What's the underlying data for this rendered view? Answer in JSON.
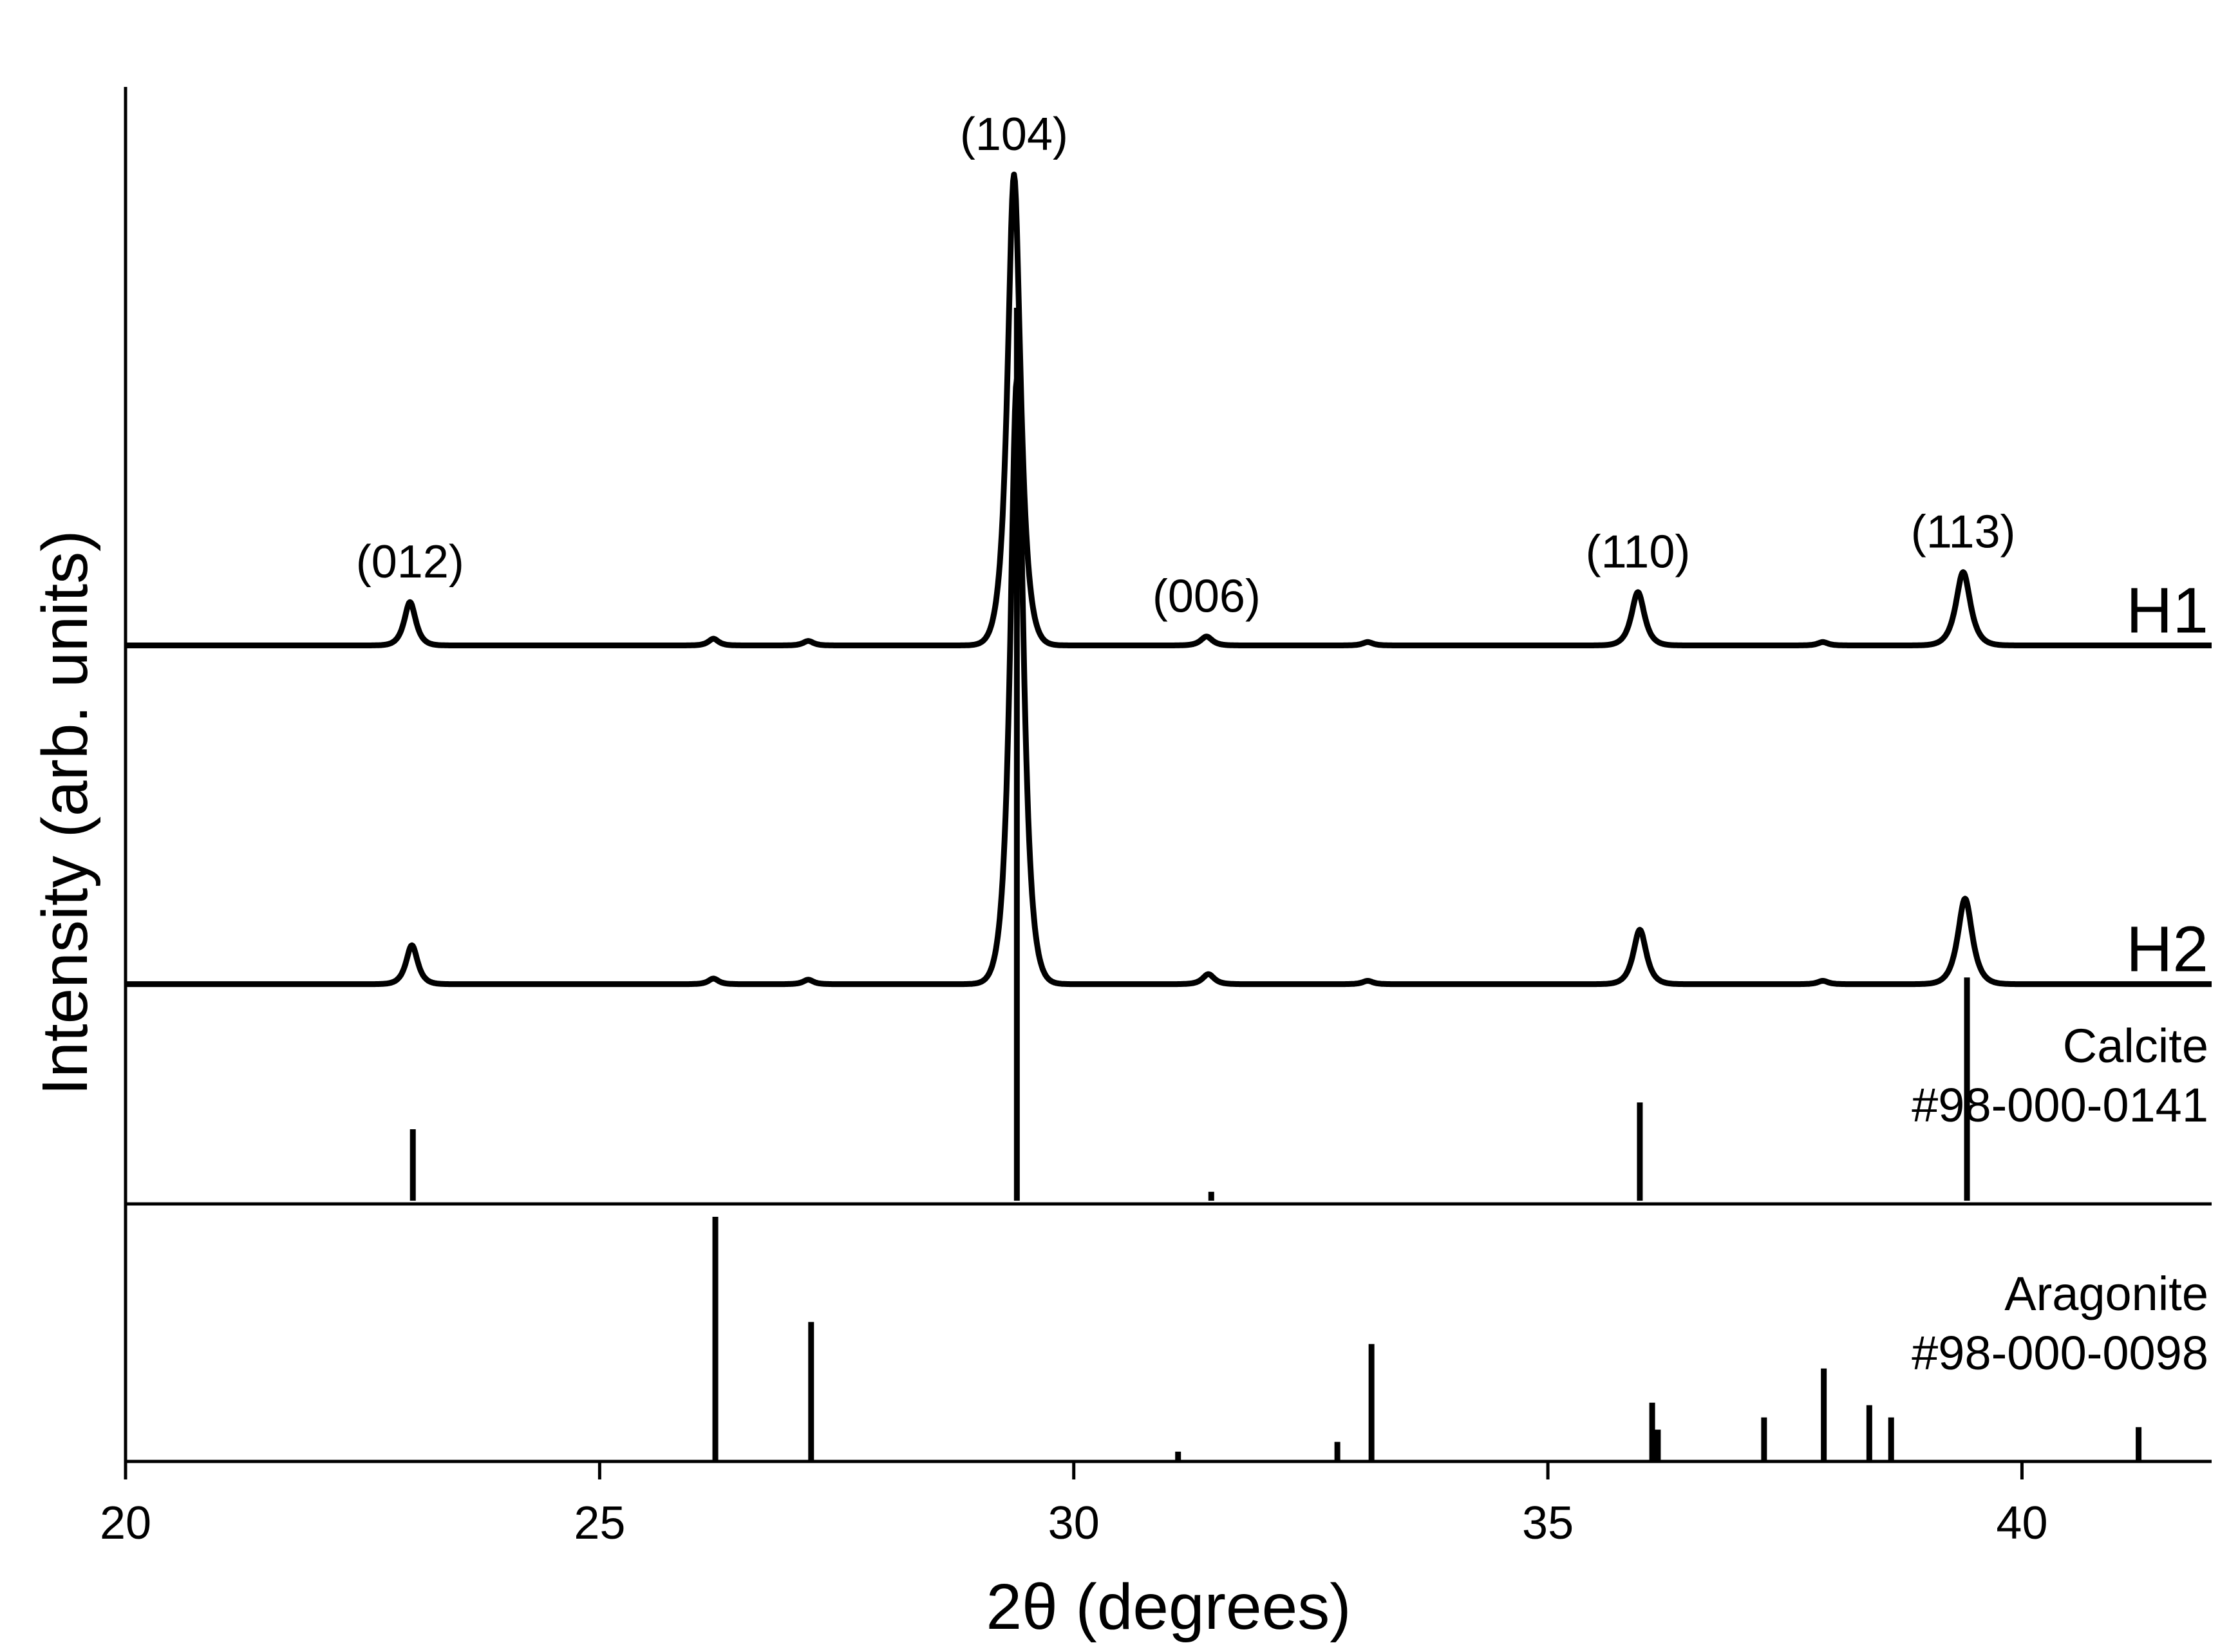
{
  "chart_data": {
    "type": "line",
    "xlabel": "2θ (degrees)",
    "ylabel": "Intensity (arb. units)",
    "xlim": [
      20,
      42
    ],
    "x_ticks": [
      20,
      25,
      30,
      35,
      40
    ],
    "x_tick_labels": [
      "20",
      "25",
      "30",
      "35",
      "40"
    ],
    "ylim": [
      0,
      1
    ],
    "grid": false,
    "series": [
      {
        "name": "H1",
        "baseline": 0.5,
        "peaks": [
          {
            "x": 23.0,
            "h": 0.039,
            "w": 0.08
          },
          {
            "x": 26.2,
            "h": 0.006,
            "w": 0.07
          },
          {
            "x": 27.2,
            "h": 0.004,
            "w": 0.07
          },
          {
            "x": 29.37,
            "h": 0.424,
            "w": 0.09
          },
          {
            "x": 31.4,
            "h": 0.008,
            "w": 0.08
          },
          {
            "x": 33.1,
            "h": 0.003,
            "w": 0.07
          },
          {
            "x": 35.95,
            "h": 0.048,
            "w": 0.09
          },
          {
            "x": 37.9,
            "h": 0.003,
            "w": 0.07
          },
          {
            "x": 39.38,
            "h": 0.066,
            "w": 0.1
          }
        ]
      },
      {
        "name": "H2",
        "baseline": 0.195,
        "peaks": [
          {
            "x": 23.02,
            "h": 0.035,
            "w": 0.08
          },
          {
            "x": 26.2,
            "h": 0.005,
            "w": 0.07
          },
          {
            "x": 27.2,
            "h": 0.004,
            "w": 0.07
          },
          {
            "x": 29.4,
            "h": 0.545,
            "w": 0.09
          },
          {
            "x": 31.42,
            "h": 0.009,
            "w": 0.08
          },
          {
            "x": 33.1,
            "h": 0.003,
            "w": 0.07
          },
          {
            "x": 35.97,
            "h": 0.049,
            "w": 0.09
          },
          {
            "x": 37.9,
            "h": 0.003,
            "w": 0.07
          },
          {
            "x": 39.4,
            "h": 0.077,
            "w": 0.1
          }
        ]
      }
    ],
    "references": [
      {
        "name": "Calcite",
        "code": "#98-000-0141",
        "lines": [
          {
            "x": 23.03,
            "i": 0.08
          },
          {
            "x": 29.4,
            "i": 1.0
          },
          {
            "x": 31.45,
            "i": 0.01
          },
          {
            "x": 35.97,
            "i": 0.11
          },
          {
            "x": 39.42,
            "i": 0.25
          }
        ]
      },
      {
        "name": "Aragonite",
        "code": "#98-000-0098",
        "lines": [
          {
            "x": 26.22,
            "i": 1.0
          },
          {
            "x": 27.23,
            "i": 0.57
          },
          {
            "x": 31.1,
            "i": 0.04
          },
          {
            "x": 32.78,
            "i": 0.08
          },
          {
            "x": 33.14,
            "i": 0.48
          },
          {
            "x": 36.1,
            "i": 0.24
          },
          {
            "x": 36.16,
            "i": 0.13
          },
          {
            "x": 37.28,
            "i": 0.18
          },
          {
            "x": 37.91,
            "i": 0.38
          },
          {
            "x": 38.39,
            "i": 0.23
          },
          {
            "x": 38.62,
            "i": 0.18
          },
          {
            "x": 41.23,
            "i": 0.14
          }
        ]
      }
    ],
    "annotations": [
      {
        "text": "(012)",
        "x": 23.0
      },
      {
        "text": "(104)",
        "x": 29.37
      },
      {
        "text": "(006)",
        "x": 31.4
      },
      {
        "text": "(110)",
        "x": 35.95
      },
      {
        "text": "(113)",
        "x": 39.38
      }
    ]
  }
}
